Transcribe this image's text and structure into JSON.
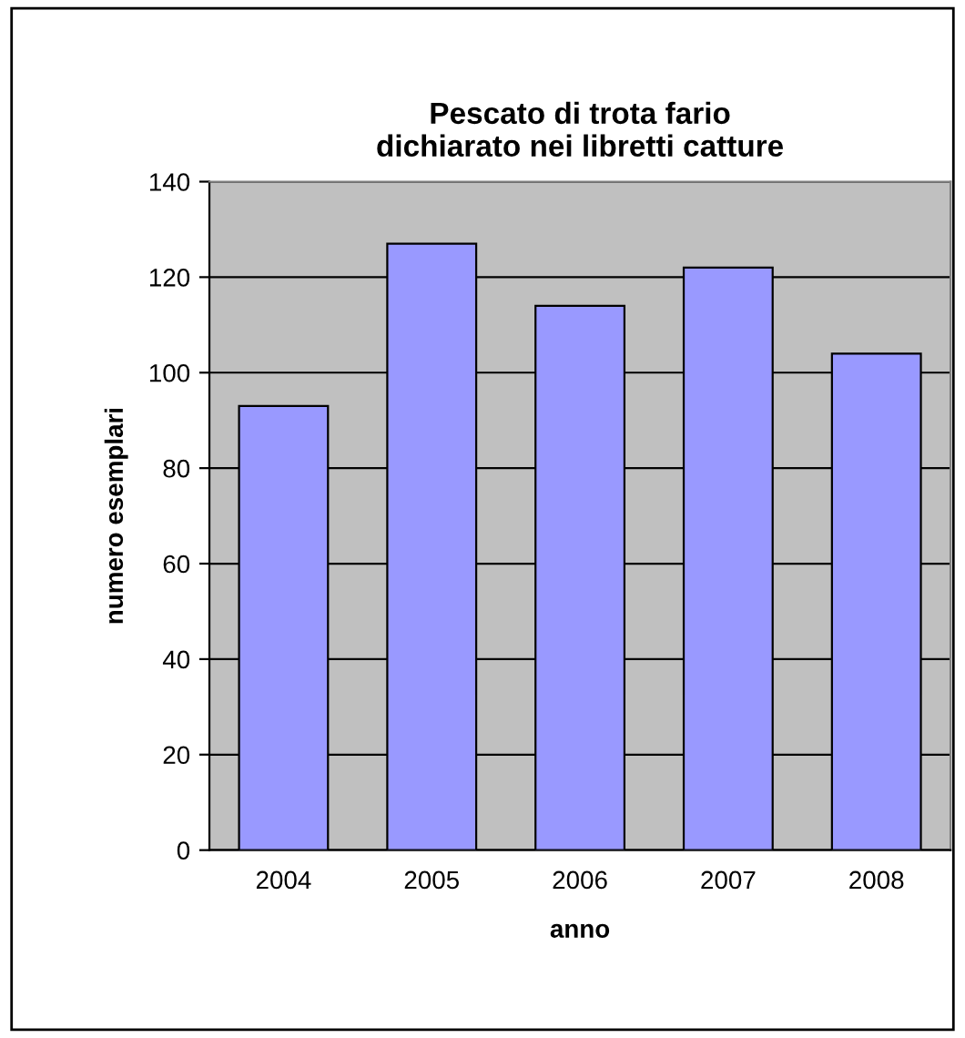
{
  "chart_data": {
    "type": "bar",
    "title": "Pescato di trota fario\ndichiarato nei libretti catture",
    "xlabel": "anno",
    "ylabel": "numero esemplari",
    "categories": [
      "2004",
      "2005",
      "2006",
      "2007",
      "2008"
    ],
    "values": [
      93,
      127,
      114,
      122,
      104
    ],
    "color": "#9999ff",
    "ylim": [
      0,
      140
    ],
    "yticks": [
      0,
      20,
      40,
      60,
      80,
      100,
      120,
      140
    ],
    "grid": "y",
    "legend": false
  }
}
